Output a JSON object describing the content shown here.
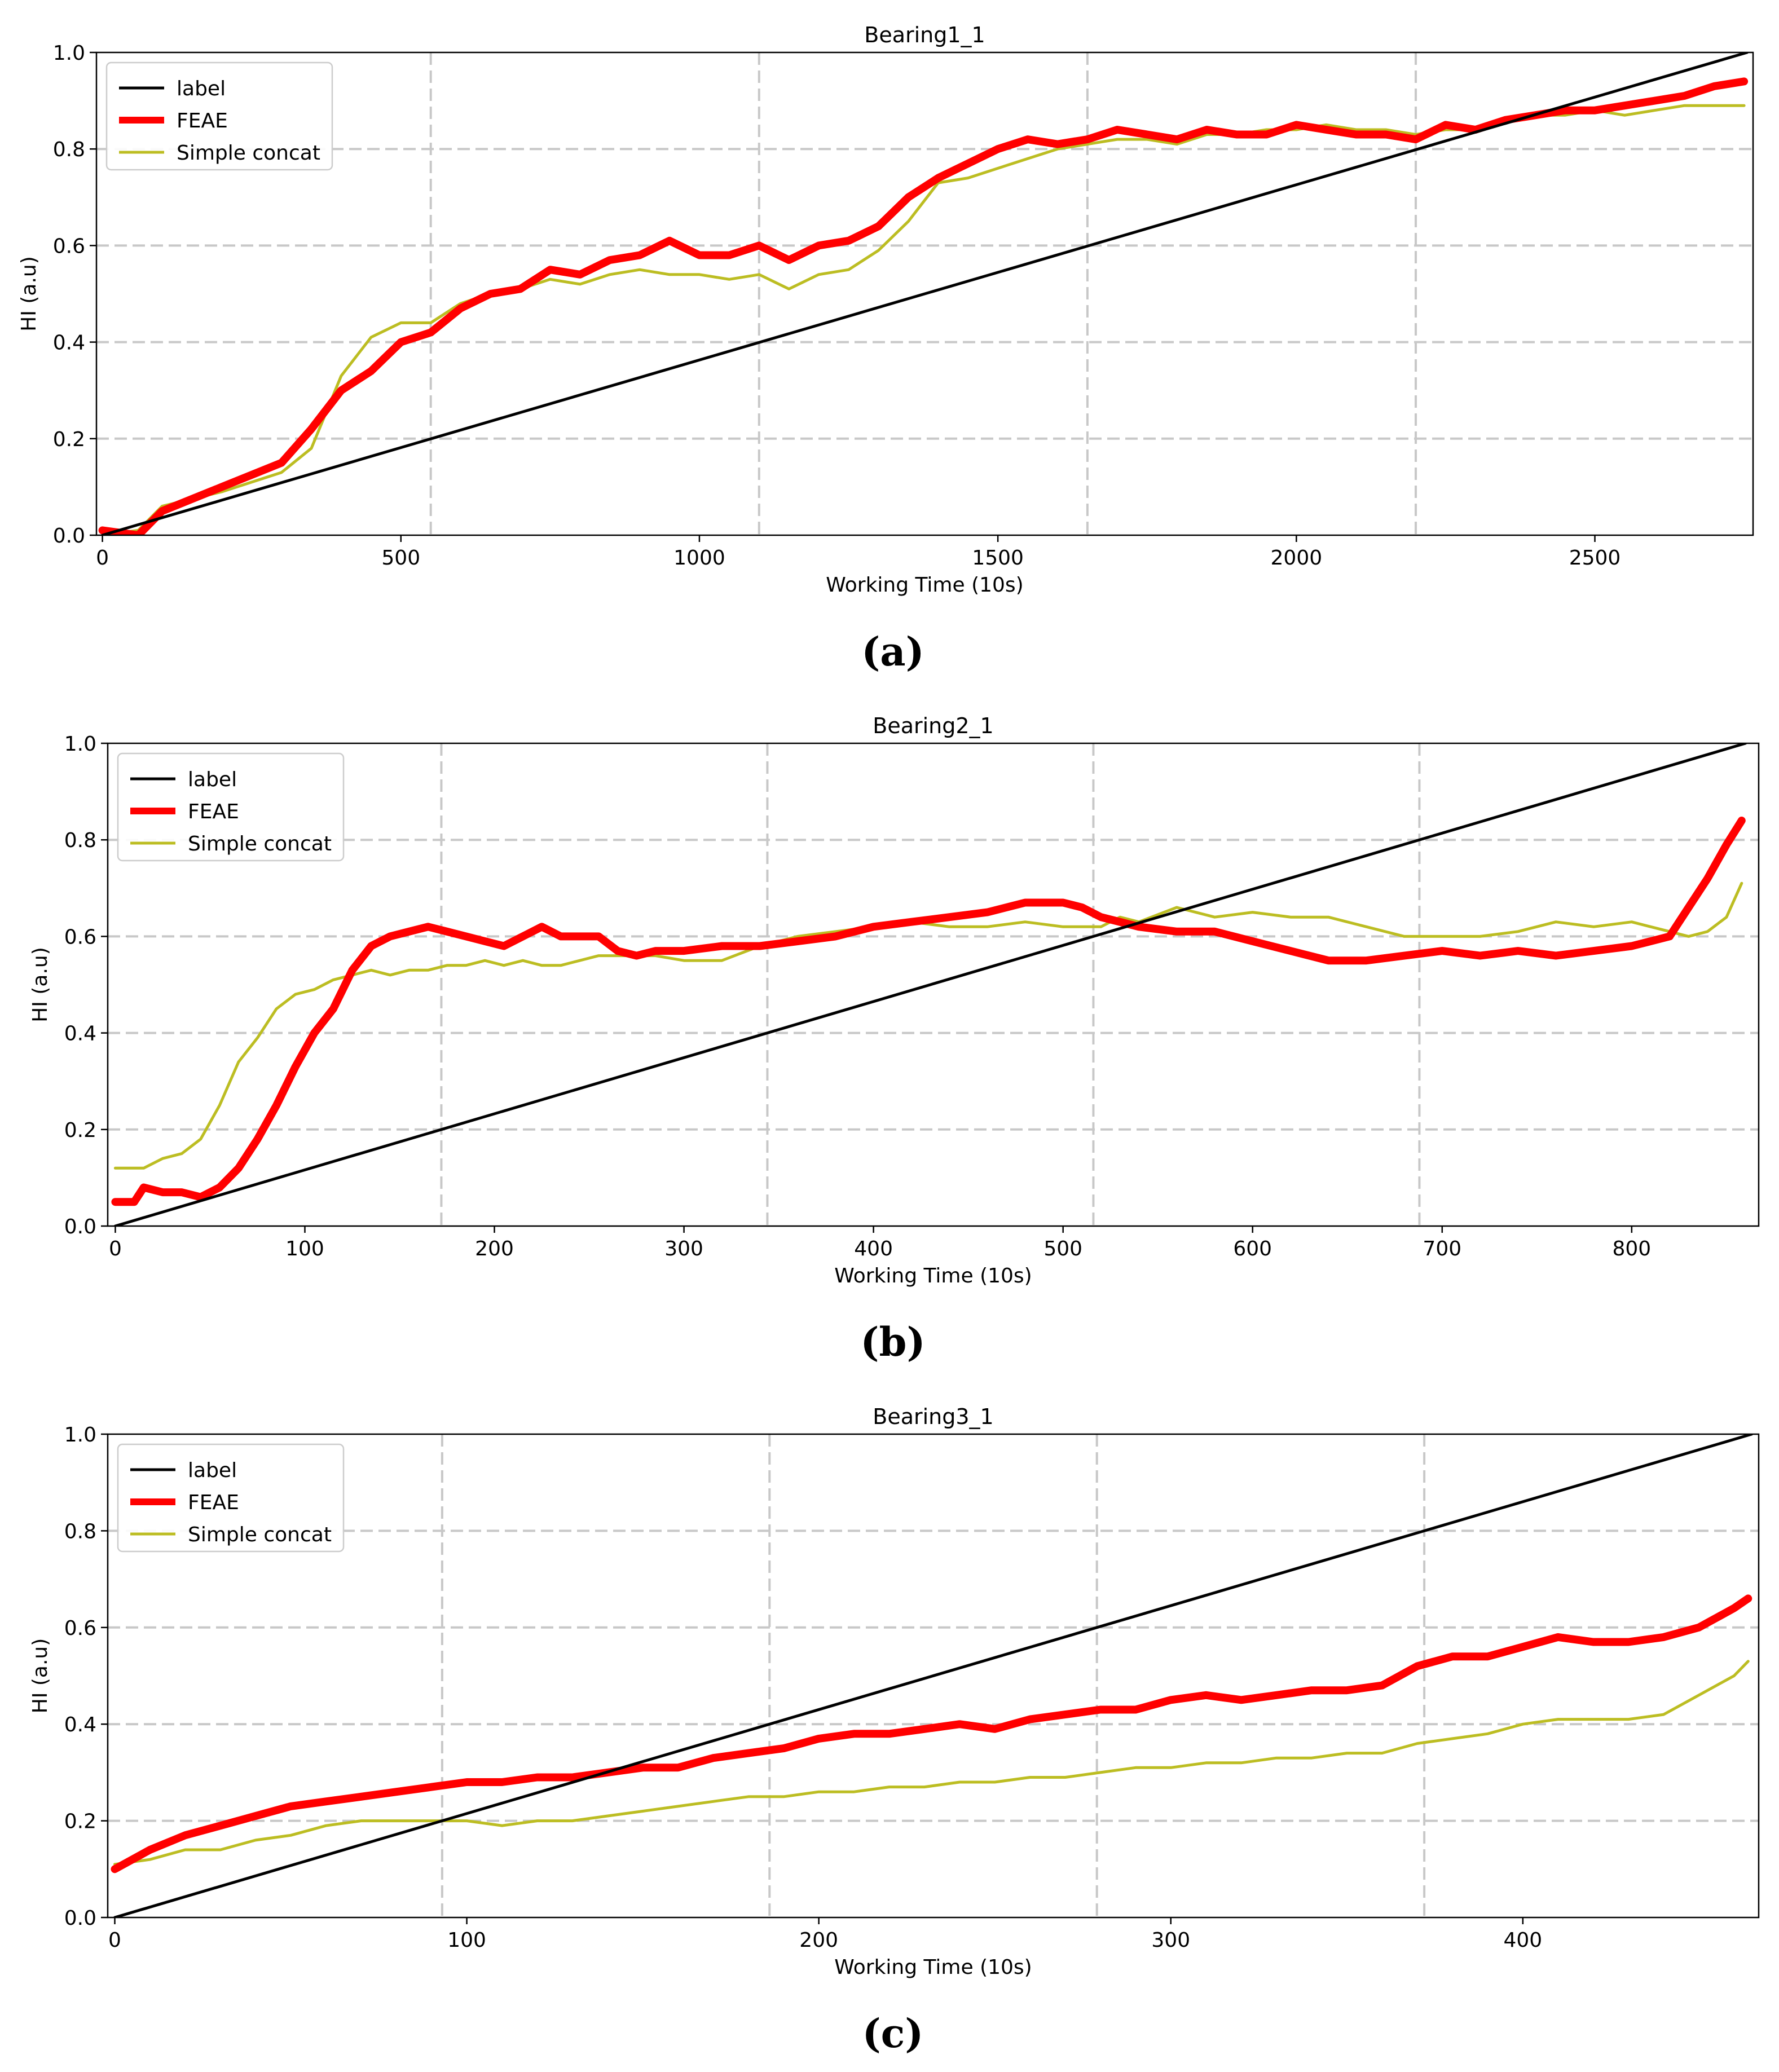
{
  "chart_data": [
    {
      "type": "line",
      "panel_label": "(a)",
      "title": "Bearing1_1",
      "xlabel": "Working Time (10s)",
      "ylabel": "HI (a.u)",
      "xlim": [
        -10,
        2765
      ],
      "ylim": [
        0.0,
        1.0
      ],
      "xticks": [
        0,
        500,
        1000,
        1500,
        2000,
        2500
      ],
      "yticks": [
        0.0,
        0.2,
        0.4,
        0.6,
        0.8,
        1.0
      ],
      "ytick_labels": [
        "0.0",
        "0.2",
        "0.4",
        "0.6",
        "0.8",
        "1.0"
      ],
      "vlines": [
        550,
        1100,
        1650,
        2200
      ],
      "legend_position": "upper-left",
      "series": [
        {
          "name": "label",
          "color": "#000000",
          "x": [
            0,
            2755
          ],
          "y": [
            0.0,
            1.0
          ]
        },
        {
          "name": "FEAE",
          "color": "#ff0000",
          "x": [
            0,
            60,
            100,
            200,
            300,
            350,
            400,
            450,
            500,
            550,
            600,
            650,
            700,
            750,
            800,
            850,
            900,
            950,
            1000,
            1050,
            1100,
            1150,
            1200,
            1250,
            1300,
            1350,
            1400,
            1450,
            1500,
            1550,
            1600,
            1650,
            1700,
            1750,
            1800,
            1850,
            1900,
            1950,
            2000,
            2050,
            2100,
            2150,
            2200,
            2250,
            2300,
            2350,
            2400,
            2450,
            2500,
            2550,
            2600,
            2650,
            2700,
            2750
          ],
          "y": [
            0.01,
            0.0,
            0.05,
            0.1,
            0.15,
            0.22,
            0.3,
            0.34,
            0.4,
            0.42,
            0.47,
            0.5,
            0.51,
            0.55,
            0.54,
            0.57,
            0.58,
            0.61,
            0.58,
            0.58,
            0.6,
            0.57,
            0.6,
            0.61,
            0.64,
            0.7,
            0.74,
            0.77,
            0.8,
            0.82,
            0.81,
            0.82,
            0.84,
            0.83,
            0.82,
            0.84,
            0.83,
            0.83,
            0.85,
            0.84,
            0.83,
            0.83,
            0.82,
            0.85,
            0.84,
            0.86,
            0.87,
            0.88,
            0.88,
            0.89,
            0.9,
            0.91,
            0.93,
            0.94
          ]
        },
        {
          "name": "Simple concat",
          "color": "#bcbd22",
          "x": [
            0,
            60,
            100,
            200,
            300,
            350,
            400,
            450,
            500,
            550,
            600,
            650,
            700,
            750,
            800,
            850,
            900,
            950,
            1000,
            1050,
            1100,
            1150,
            1200,
            1250,
            1300,
            1350,
            1400,
            1450,
            1500,
            1550,
            1600,
            1650,
            1700,
            1750,
            1800,
            1850,
            1900,
            1950,
            2000,
            2050,
            2100,
            2150,
            2200,
            2250,
            2300,
            2350,
            2400,
            2450,
            2500,
            2550,
            2600,
            2650,
            2700,
            2750
          ],
          "y": [
            0.0,
            0.01,
            0.06,
            0.09,
            0.13,
            0.18,
            0.33,
            0.41,
            0.44,
            0.44,
            0.48,
            0.5,
            0.51,
            0.53,
            0.52,
            0.54,
            0.55,
            0.54,
            0.54,
            0.53,
            0.54,
            0.51,
            0.54,
            0.55,
            0.59,
            0.65,
            0.73,
            0.74,
            0.76,
            0.78,
            0.8,
            0.81,
            0.82,
            0.82,
            0.81,
            0.83,
            0.83,
            0.84,
            0.84,
            0.85,
            0.84,
            0.84,
            0.83,
            0.84,
            0.84,
            0.86,
            0.87,
            0.87,
            0.88,
            0.87,
            0.88,
            0.89,
            0.89,
            0.89
          ]
        }
      ]
    },
    {
      "type": "line",
      "panel_label": "(b)",
      "title": "Bearing2_1",
      "xlabel": "Working Time (10s)",
      "ylabel": "HI (a.u)",
      "xlim": [
        -4,
        867
      ],
      "ylim": [
        0.0,
        1.0
      ],
      "xticks": [
        0,
        100,
        200,
        300,
        400,
        500,
        600,
        700,
        800
      ],
      "yticks": [
        0.0,
        0.2,
        0.4,
        0.6,
        0.8,
        1.0
      ],
      "ytick_labels": [
        "0.0",
        "0.2",
        "0.4",
        "0.6",
        "0.8",
        "1.0"
      ],
      "vlines": [
        172,
        344,
        516,
        688
      ],
      "legend_position": "upper-left",
      "series": [
        {
          "name": "label",
          "color": "#000000",
          "x": [
            0,
            860
          ],
          "y": [
            0.0,
            1.0
          ]
        },
        {
          "name": "FEAE",
          "color": "#ff0000",
          "x": [
            0,
            10,
            15,
            25,
            35,
            45,
            55,
            65,
            75,
            85,
            95,
            105,
            115,
            125,
            135,
            145,
            155,
            165,
            175,
            185,
            195,
            205,
            215,
            225,
            235,
            245,
            255,
            265,
            275,
            285,
            300,
            320,
            340,
            360,
            380,
            400,
            420,
            440,
            460,
            480,
            500,
            510,
            520,
            530,
            540,
            560,
            580,
            600,
            620,
            640,
            660,
            680,
            700,
            720,
            740,
            760,
            780,
            800,
            810,
            820,
            830,
            840,
            850,
            858
          ],
          "y": [
            0.05,
            0.05,
            0.08,
            0.07,
            0.07,
            0.06,
            0.08,
            0.12,
            0.18,
            0.25,
            0.33,
            0.4,
            0.45,
            0.53,
            0.58,
            0.6,
            0.61,
            0.62,
            0.61,
            0.6,
            0.59,
            0.58,
            0.6,
            0.62,
            0.6,
            0.6,
            0.6,
            0.57,
            0.56,
            0.57,
            0.57,
            0.58,
            0.58,
            0.59,
            0.6,
            0.62,
            0.63,
            0.64,
            0.65,
            0.67,
            0.67,
            0.66,
            0.64,
            0.63,
            0.62,
            0.61,
            0.61,
            0.59,
            0.57,
            0.55,
            0.55,
            0.56,
            0.57,
            0.56,
            0.57,
            0.56,
            0.57,
            0.58,
            0.59,
            0.6,
            0.66,
            0.72,
            0.79,
            0.84
          ]
        },
        {
          "name": "Simple concat",
          "color": "#bcbd22",
          "x": [
            0,
            10,
            15,
            25,
            35,
            45,
            55,
            65,
            75,
            85,
            95,
            105,
            115,
            125,
            135,
            145,
            155,
            165,
            175,
            185,
            195,
            205,
            215,
            225,
            235,
            245,
            255,
            265,
            275,
            285,
            300,
            320,
            340,
            360,
            380,
            400,
            420,
            440,
            460,
            480,
            500,
            510,
            520,
            530,
            540,
            560,
            580,
            600,
            620,
            640,
            660,
            680,
            700,
            720,
            740,
            760,
            780,
            800,
            810,
            820,
            830,
            840,
            850,
            858
          ],
          "y": [
            0.12,
            0.12,
            0.12,
            0.14,
            0.15,
            0.18,
            0.25,
            0.34,
            0.39,
            0.45,
            0.48,
            0.49,
            0.51,
            0.52,
            0.53,
            0.52,
            0.53,
            0.53,
            0.54,
            0.54,
            0.55,
            0.54,
            0.55,
            0.54,
            0.54,
            0.55,
            0.56,
            0.56,
            0.56,
            0.56,
            0.55,
            0.55,
            0.58,
            0.6,
            0.61,
            0.62,
            0.63,
            0.62,
            0.62,
            0.63,
            0.62,
            0.62,
            0.62,
            0.64,
            0.63,
            0.66,
            0.64,
            0.65,
            0.64,
            0.64,
            0.62,
            0.6,
            0.6,
            0.6,
            0.61,
            0.63,
            0.62,
            0.63,
            0.62,
            0.61,
            0.6,
            0.61,
            0.64,
            0.71
          ]
        }
      ]
    },
    {
      "type": "line",
      "panel_label": "(c)",
      "title": "Bearing3_1",
      "xlabel": "Working Time (10s)",
      "ylabel": "HI (a.u)",
      "xlim": [
        -2,
        467
      ],
      "ylim": [
        0.0,
        1.0
      ],
      "xticks": [
        0,
        100,
        200,
        300,
        400
      ],
      "yticks": [
        0.0,
        0.2,
        0.4,
        0.6,
        0.8,
        1.0
      ],
      "ytick_labels": [
        "0.0",
        "0.2",
        "0.4",
        "0.6",
        "0.8",
        "1.0"
      ],
      "vlines": [
        93,
        186,
        279,
        372
      ],
      "legend_position": "upper-left",
      "series": [
        {
          "name": "label",
          "color": "#000000",
          "x": [
            0,
            465
          ],
          "y": [
            0.0,
            1.0
          ]
        },
        {
          "name": "FEAE",
          "color": "#ff0000",
          "x": [
            0,
            10,
            20,
            30,
            40,
            50,
            60,
            70,
            80,
            90,
            100,
            110,
            120,
            130,
            140,
            150,
            160,
            170,
            180,
            190,
            200,
            210,
            220,
            230,
            240,
            250,
            260,
            270,
            280,
            290,
            300,
            310,
            320,
            330,
            340,
            350,
            360,
            370,
            380,
            390,
            400,
            410,
            420,
            430,
            440,
            450,
            460,
            464
          ],
          "y": [
            0.1,
            0.14,
            0.17,
            0.19,
            0.21,
            0.23,
            0.24,
            0.25,
            0.26,
            0.27,
            0.28,
            0.28,
            0.29,
            0.29,
            0.3,
            0.31,
            0.31,
            0.33,
            0.34,
            0.35,
            0.37,
            0.38,
            0.38,
            0.39,
            0.4,
            0.39,
            0.41,
            0.42,
            0.43,
            0.43,
            0.45,
            0.46,
            0.45,
            0.46,
            0.47,
            0.47,
            0.48,
            0.52,
            0.54,
            0.54,
            0.56,
            0.58,
            0.57,
            0.57,
            0.58,
            0.6,
            0.64,
            0.66
          ]
        },
        {
          "name": "Simple concat",
          "color": "#bcbd22",
          "x": [
            0,
            10,
            20,
            30,
            40,
            50,
            60,
            70,
            80,
            90,
            100,
            110,
            120,
            130,
            140,
            150,
            160,
            170,
            180,
            190,
            200,
            210,
            220,
            230,
            240,
            250,
            260,
            270,
            280,
            290,
            300,
            310,
            320,
            330,
            340,
            350,
            360,
            370,
            380,
            390,
            400,
            410,
            420,
            430,
            440,
            450,
            460,
            464
          ],
          "y": [
            0.11,
            0.12,
            0.14,
            0.14,
            0.16,
            0.17,
            0.19,
            0.2,
            0.2,
            0.2,
            0.2,
            0.19,
            0.2,
            0.2,
            0.21,
            0.22,
            0.23,
            0.24,
            0.25,
            0.25,
            0.26,
            0.26,
            0.27,
            0.27,
            0.28,
            0.28,
            0.29,
            0.29,
            0.3,
            0.31,
            0.31,
            0.32,
            0.32,
            0.33,
            0.33,
            0.34,
            0.34,
            0.36,
            0.37,
            0.38,
            0.4,
            0.41,
            0.41,
            0.41,
            0.42,
            0.46,
            0.5,
            0.53
          ]
        }
      ]
    }
  ]
}
